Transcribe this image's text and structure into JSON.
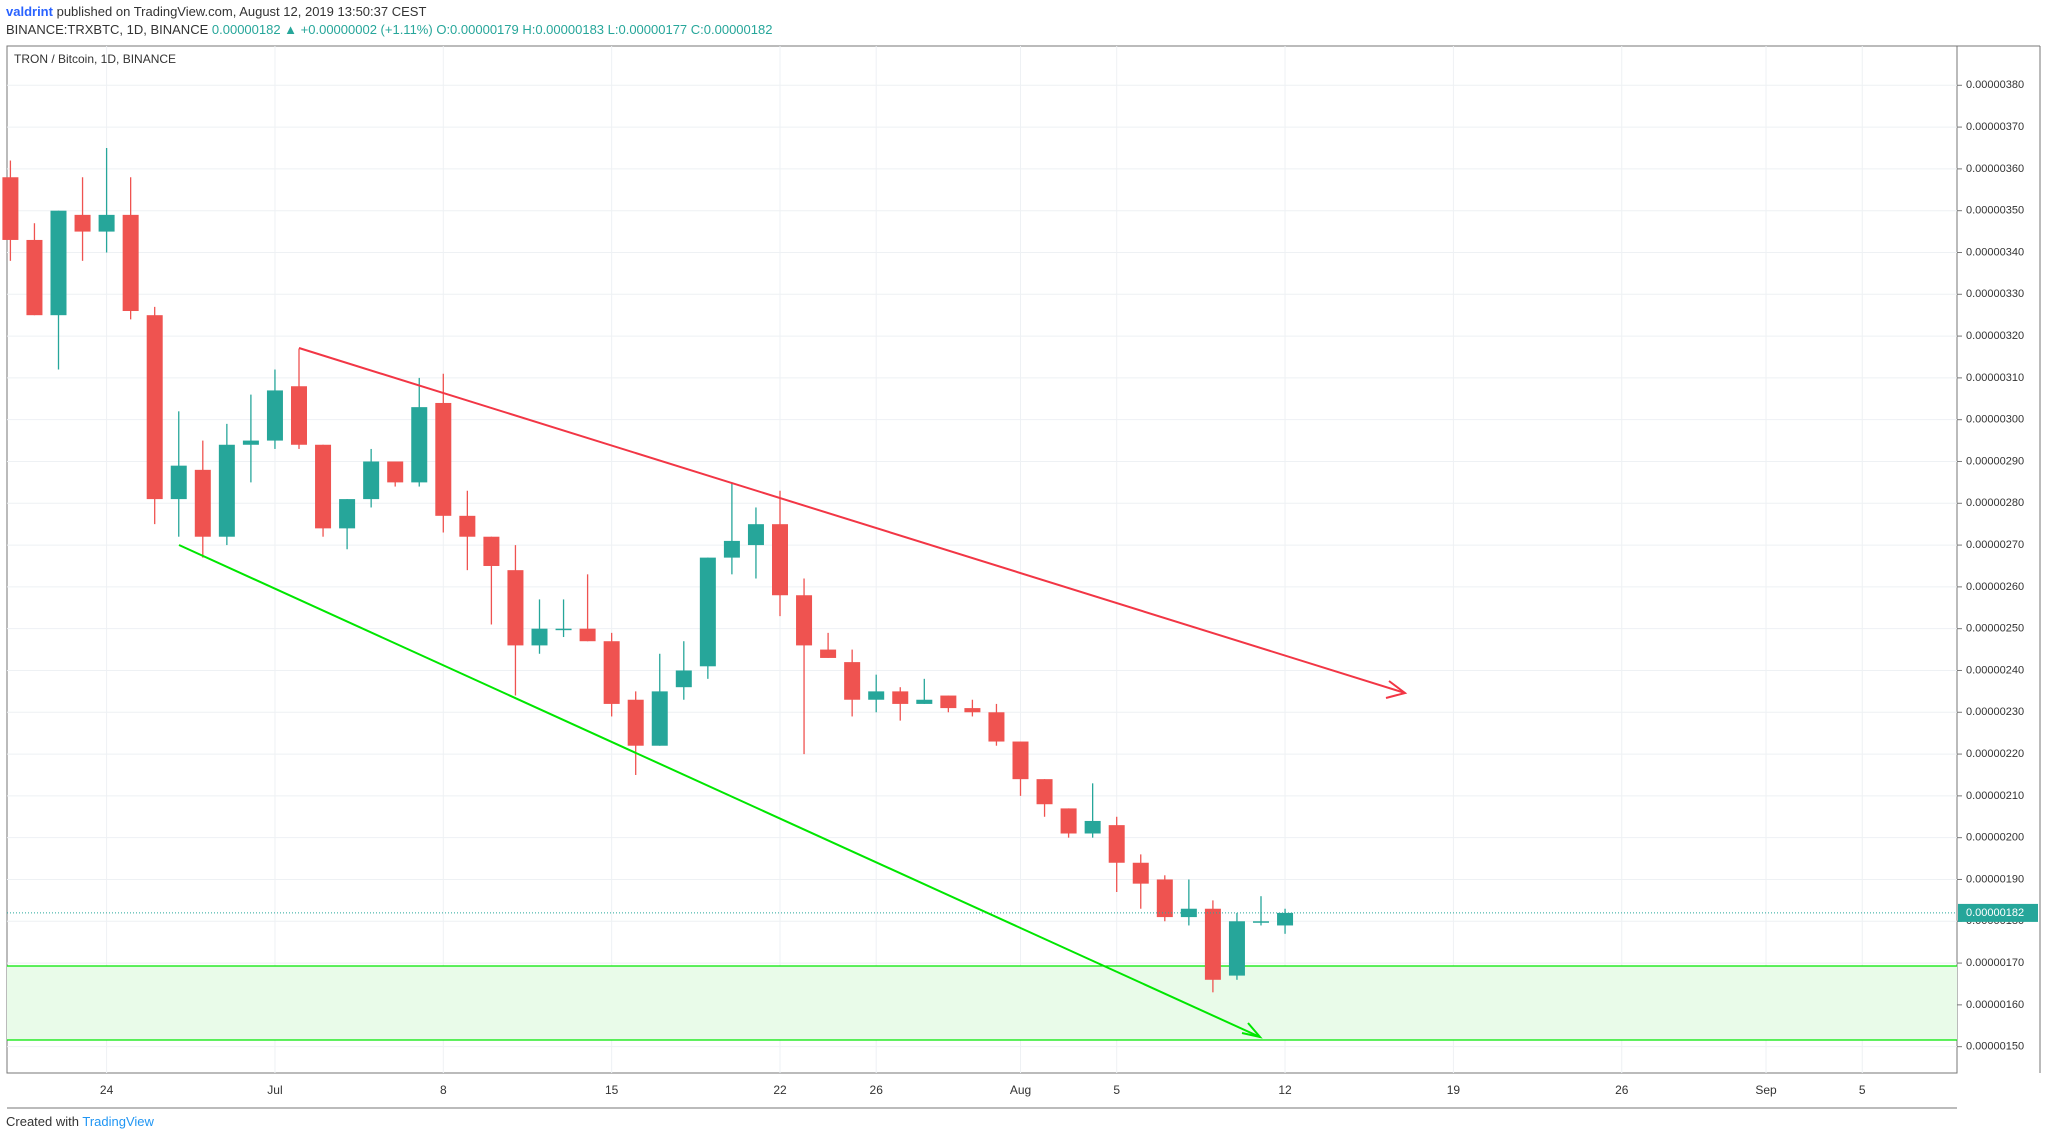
{
  "header": {
    "author": "valdrint",
    "published": "published on TradingView.com, August 12, 2019 13:50:37 CEST",
    "symbol": "BINANCE:TRXBTC, 1D, BINANCE",
    "change": "0.00000182 ▲ +0.00000002 (+1.11%)",
    "ohlc": "O:0.00000179 H:0.00000183 L:0.00000177 C:0.00000182"
  },
  "footer": {
    "created": "Created with",
    "brand": "TradingView"
  },
  "chart_data": {
    "type": "candlestick",
    "title": "TRON / Bitcoin, 1D, BINANCE",
    "up_color": "#26a69a",
    "down_color": "#ef5350",
    "grid": true,
    "categories": [
      null,
      null,
      null,
      null,
      "24",
      null,
      null,
      null,
      null,
      null,
      null,
      "Jul",
      null,
      null,
      null,
      null,
      null,
      null,
      "8",
      null,
      null,
      null,
      null,
      null,
      null,
      "15",
      null,
      null,
      null,
      null,
      null,
      null,
      "22",
      null,
      null,
      null,
      "26",
      null,
      null,
      null,
      null,
      null,
      "Aug",
      null,
      null,
      null,
      "5",
      null,
      null,
      null,
      null,
      null,
      null,
      "12",
      null,
      null,
      null,
      null,
      null,
      null,
      "19",
      null,
      null,
      null,
      null,
      null,
      null,
      "26",
      null,
      null,
      null,
      null,
      null,
      "Sep",
      null,
      null,
      null,
      "5",
      null,
      null,
      null,
      null
    ],
    "open": [
      3.58e-06,
      3.43e-06,
      3.25e-06,
      3.49e-06,
      3.45e-06,
      3.49e-06,
      3.25e-06,
      2.81e-06,
      2.88e-06,
      2.72e-06,
      2.94e-06,
      2.95e-06,
      3.08e-06,
      2.94e-06,
      2.74e-06,
      2.81e-06,
      2.9e-06,
      2.85e-06,
      3.04e-06,
      2.77e-06,
      2.72e-06,
      2.64e-06,
      2.46e-06,
      2.5e-06,
      2.5e-06,
      2.47e-06,
      2.33e-06,
      2.22e-06,
      2.36e-06,
      2.41e-06,
      2.67e-06,
      2.7e-06,
      2.75e-06,
      2.58e-06,
      2.45e-06,
      2.42e-06,
      2.33e-06,
      2.35e-06,
      2.32e-06,
      2.34e-06,
      2.31e-06,
      2.3e-06,
      2.23e-06,
      2.14e-06,
      2.07e-06,
      2.01e-06,
      2.03e-06,
      1.94e-06,
      1.9e-06,
      1.81e-06,
      1.83e-06,
      1.67e-06,
      1.8e-06,
      1.79e-06,
      null,
      null,
      null,
      null,
      null,
      null,
      null,
      null,
      null,
      null,
      null,
      null,
      null,
      null,
      null,
      null,
      null,
      null,
      null,
      null,
      null,
      null,
      null,
      null,
      null,
      null,
      null,
      null
    ],
    "high": [
      3.62e-06,
      3.47e-06,
      3.5e-06,
      3.58e-06,
      3.65e-06,
      3.58e-06,
      3.27e-06,
      3.02e-06,
      2.95e-06,
      2.99e-06,
      3.06e-06,
      3.12e-06,
      3.17e-06,
      2.94e-06,
      2.81e-06,
      2.93e-06,
      2.9e-06,
      3.1e-06,
      3.11e-06,
      2.83e-06,
      2.72e-06,
      2.7e-06,
      2.57e-06,
      2.57e-06,
      2.63e-06,
      2.49e-06,
      2.35e-06,
      2.44e-06,
      2.47e-06,
      2.67e-06,
      2.85e-06,
      2.79e-06,
      2.83e-06,
      2.62e-06,
      2.49e-06,
      2.45e-06,
      2.39e-06,
      2.36e-06,
      2.38e-06,
      2.34e-06,
      2.33e-06,
      2.32e-06,
      2.23e-06,
      2.14e-06,
      2.07e-06,
      2.13e-06,
      2.05e-06,
      1.96e-06,
      1.91e-06,
      1.9e-06,
      1.85e-06,
      1.82e-06,
      1.86e-06,
      1.83e-06,
      null,
      null,
      null,
      null,
      null,
      null,
      null,
      null,
      null,
      null,
      null,
      null,
      null,
      null,
      null,
      null,
      null,
      null,
      null,
      null,
      null,
      null,
      null,
      null,
      null,
      null,
      null,
      null
    ],
    "low": [
      3.38e-06,
      3.25e-06,
      3.12e-06,
      3.38e-06,
      3.4e-06,
      3.24e-06,
      2.75e-06,
      2.72e-06,
      2.67e-06,
      2.7e-06,
      2.85e-06,
      2.93e-06,
      2.93e-06,
      2.72e-06,
      2.69e-06,
      2.79e-06,
      2.84e-06,
      2.84e-06,
      2.73e-06,
      2.64e-06,
      2.51e-06,
      2.34e-06,
      2.44e-06,
      2.48e-06,
      2.47e-06,
      2.29e-06,
      2.15e-06,
      2.22e-06,
      2.33e-06,
      2.38e-06,
      2.63e-06,
      2.62e-06,
      2.53e-06,
      2.2e-06,
      2.43e-06,
      2.29e-06,
      2.3e-06,
      2.28e-06,
      2.32e-06,
      2.3e-06,
      2.29e-06,
      2.22e-06,
      2.1e-06,
      2.05e-06,
      2e-06,
      2e-06,
      1.87e-06,
      1.83e-06,
      1.8e-06,
      1.79e-06,
      1.63e-06,
      1.66e-06,
      1.79e-06,
      1.77e-06,
      null,
      null,
      null,
      null,
      null,
      null,
      null,
      null,
      null,
      null,
      null,
      null,
      null,
      null,
      null,
      null,
      null,
      null,
      null,
      null,
      null,
      null,
      null,
      null,
      null,
      null,
      null,
      null
    ],
    "close": [
      3.43e-06,
      3.25e-06,
      3.5e-06,
      3.45e-06,
      3.49e-06,
      3.26e-06,
      2.81e-06,
      2.89e-06,
      2.72e-06,
      2.94e-06,
      2.95e-06,
      3.07e-06,
      2.94e-06,
      2.74e-06,
      2.81e-06,
      2.9e-06,
      2.85e-06,
      3.03e-06,
      2.77e-06,
      2.72e-06,
      2.65e-06,
      2.46e-06,
      2.5e-06,
      2.5e-06,
      2.47e-06,
      2.32e-06,
      2.22e-06,
      2.35e-06,
      2.4e-06,
      2.67e-06,
      2.71e-06,
      2.75e-06,
      2.58e-06,
      2.46e-06,
      2.43e-06,
      2.33e-06,
      2.35e-06,
      2.32e-06,
      2.33e-06,
      2.31e-06,
      2.3e-06,
      2.23e-06,
      2.14e-06,
      2.08e-06,
      2.01e-06,
      2.04e-06,
      1.94e-06,
      1.89e-06,
      1.81e-06,
      1.83e-06,
      1.66e-06,
      1.8e-06,
      1.8e-06,
      1.82e-06,
      null,
      null,
      null,
      null,
      null,
      null,
      null,
      null,
      null,
      null,
      null,
      null,
      null,
      null,
      null,
      null,
      null,
      null,
      null,
      null,
      null,
      null,
      null,
      null,
      null,
      null,
      null,
      null
    ],
    "ylim": [
      1.437e-06,
      3.894e-06
    ],
    "yticks": [
      {
        "value": 1.5e-06,
        "label": "0.00000150"
      },
      {
        "value": 1.6e-06,
        "label": "0.00000160"
      },
      {
        "value": 1.7e-06,
        "label": "0.00000170"
      },
      {
        "value": 1.8e-06,
        "label": "0.00000180"
      },
      {
        "value": 1.9e-06,
        "label": "0.00000190"
      },
      {
        "value": 2e-06,
        "label": "0.00000200"
      },
      {
        "value": 2.1e-06,
        "label": "0.00000210"
      },
      {
        "value": 2.2e-06,
        "label": "0.00000220"
      },
      {
        "value": 2.3e-06,
        "label": "0.00000230"
      },
      {
        "value": 2.4e-06,
        "label": "0.00000240"
      },
      {
        "value": 2.5e-06,
        "label": "0.00000250"
      },
      {
        "value": 2.6e-06,
        "label": "0.00000260"
      },
      {
        "value": 2.7e-06,
        "label": "0.00000270"
      },
      {
        "value": 2.8e-06,
        "label": "0.00000280"
      },
      {
        "value": 2.9e-06,
        "label": "0.00000290"
      },
      {
        "value": 3e-06,
        "label": "0.00000300"
      },
      {
        "value": 3.1e-06,
        "label": "0.00000310"
      },
      {
        "value": 3.2e-06,
        "label": "0.00000320"
      },
      {
        "value": 3.3e-06,
        "label": "0.00000330"
      },
      {
        "value": 3.4e-06,
        "label": "0.00000340"
      },
      {
        "value": 3.5e-06,
        "label": "0.00000350"
      },
      {
        "value": 3.6e-06,
        "label": "0.00000360"
      },
      {
        "value": 3.7e-06,
        "label": "0.00000370"
      },
      {
        "value": 3.8e-06,
        "label": "0.00000380"
      }
    ]
  }
}
